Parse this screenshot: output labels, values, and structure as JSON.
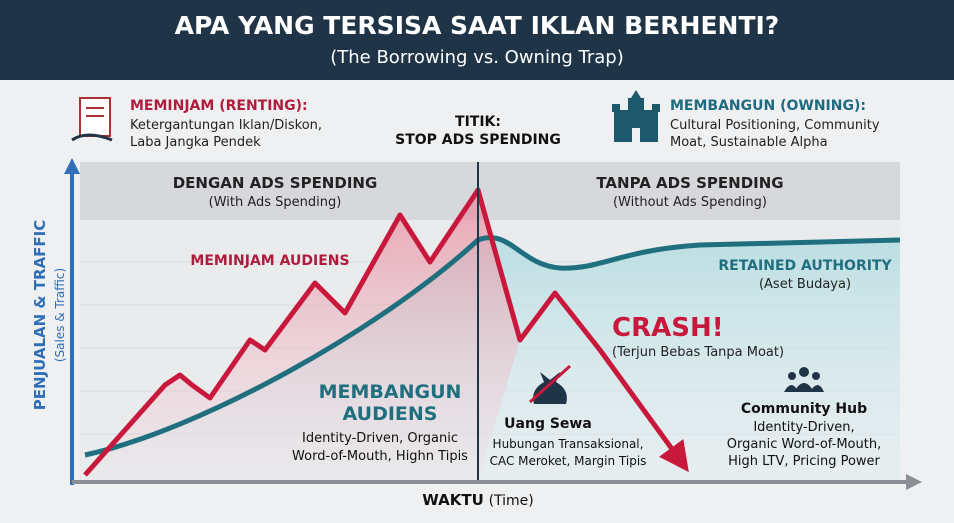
{
  "header": {
    "title": "APA YANG TERSISA SAAT IKLAN BERHENTI?",
    "subtitle": "(The Borrowing vs. Owning Trap)"
  },
  "left_note": {
    "heading": "MEMINJAM (RENTING):",
    "lines": [
      "Ketergantungan Iklan/Diskon,",
      "Laba Jangka Pendek"
    ]
  },
  "stop_point": {
    "lines": [
      "TITIK:",
      "STOP ADS SPENDING"
    ]
  },
  "right_note": {
    "heading": "MEMBANGUN (OWNING):",
    "lines": [
      "Cultural Positioning, Community",
      "Moat, Sustainable Alpha"
    ]
  },
  "bands": [
    {
      "title": "DENGAN ADS SPENDING",
      "subtitle": "(With Ads Spending)"
    },
    {
      "title": "TANPA ADS SPENDING",
      "subtitle": "(Without Ads Spending)"
    }
  ],
  "axes": {
    "y_label": "PENJUALAN & TRAFFIC",
    "y_sublabel": "(Sales & Traffic)",
    "x_label": "WAKTU",
    "x_sublabel": "(Time)"
  },
  "annotations": {
    "borrow": "MEMINJAM AUDIENS",
    "retained": {
      "title": "RETAINED AUTHORITY",
      "subtitle": "(Aset Budaya)"
    },
    "crash": {
      "title": "CRASH!",
      "subtitle": "(Terjun Bebas Tanpa Moat)"
    },
    "build": {
      "title": [
        "MEMBANGUN",
        "AUDIENS"
      ],
      "lines": [
        "Identity-Driven, Organic",
        "Word-of-Mouth, Highn Tipis"
      ]
    },
    "rent": {
      "title": "Uang Sewa",
      "lines": [
        "Hubungan Transaksional,",
        "CAC Meroket, Margin Tipis"
      ]
    },
    "hub": {
      "title": "Community Hub",
      "lines": [
        "Identity-Driven,",
        "Organic Word-of-Mouth,",
        "High LTV, Pricing Power"
      ]
    }
  }
}
